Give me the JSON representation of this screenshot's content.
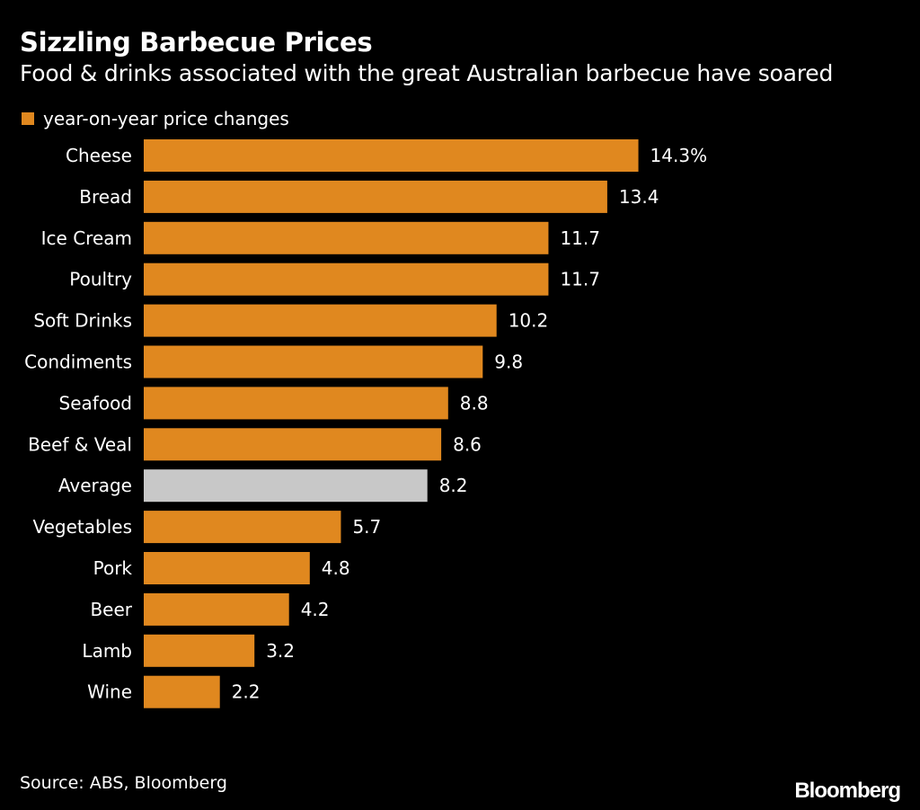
{
  "title": "Sizzling Barbecue Prices",
  "subtitle": "Food & drinks associated with the great Australian barbecue have soared",
  "legend": {
    "label": "year-on-year price changes"
  },
  "source": "Source: ABS, Bloomberg",
  "brand": "Bloomberg",
  "colors": {
    "bar": "#e0881f",
    "highlight": "#c8c8c8",
    "background": "#000000",
    "text": "#ffffff"
  },
  "chart_data": {
    "type": "bar",
    "orientation": "horizontal",
    "categories": [
      "Cheese",
      "Bread",
      "Ice Cream",
      "Poultry",
      "Soft Drinks",
      "Condiments",
      "Seafood",
      "Beef & Veal",
      "Average",
      "Vegetables",
      "Pork",
      "Beer",
      "Lamb",
      "Wine"
    ],
    "values": [
      14.3,
      13.4,
      11.7,
      11.7,
      10.2,
      9.8,
      8.8,
      8.6,
      8.2,
      5.7,
      4.8,
      4.2,
      3.2,
      2.2
    ],
    "value_labels": [
      "14.3%",
      "13.4",
      "11.7",
      "11.7",
      "10.2",
      "9.8",
      "8.8",
      "8.6",
      "8.2",
      "5.7",
      "4.8",
      "4.2",
      "3.2",
      "2.2"
    ],
    "highlight_category": "Average",
    "series": [
      {
        "name": "year-on-year price changes"
      }
    ],
    "legend_position": "top-left",
    "grid": false
  }
}
